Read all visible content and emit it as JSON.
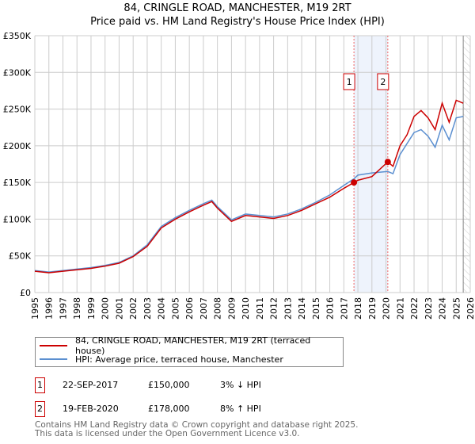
{
  "chart_data": {
    "type": "line",
    "title": "84, CRINGLE ROAD, MANCHESTER, M19 2RT",
    "subtitle": "Price paid vs. HM Land Registry's House Price Index (HPI)",
    "xlim": [
      1995,
      2026
    ],
    "ylim": [
      0,
      350000
    ],
    "yticks": [
      0,
      50000,
      100000,
      150000,
      200000,
      250000,
      300000,
      350000
    ],
    "yticklabels": [
      "£0",
      "£50K",
      "£100K",
      "£150K",
      "£200K",
      "£250K",
      "£300K",
      "£350K"
    ],
    "xticks": [
      1995,
      1996,
      1997,
      1998,
      1999,
      2000,
      2001,
      2002,
      2003,
      2004,
      2005,
      2006,
      2007,
      2008,
      2009,
      2010,
      2011,
      2012,
      2013,
      2014,
      2015,
      2016,
      2017,
      2018,
      2019,
      2020,
      2021,
      2022,
      2023,
      2024,
      2025,
      2026
    ],
    "grid": true,
    "series": [
      {
        "name": "84, CRINGLE ROAD, MANCHESTER, M19 2RT (terraced house)",
        "color": "#cc0000",
        "x": [
          1995,
          1996,
          1997,
          1998,
          1999,
          2000,
          2001,
          2002,
          2003,
          2004,
          2005,
          2006,
          2007,
          2007.6,
          2008,
          2009,
          2010,
          2011,
          2012,
          2013,
          2014,
          2015,
          2016,
          2017,
          2017.72,
          2018,
          2019,
          2020.13,
          2020.5,
          2021,
          2021.5,
          2022,
          2022.5,
          2023,
          2023.5,
          2024,
          2024.5,
          2025,
          2025.5
        ],
        "y": [
          29000,
          27000,
          29000,
          31000,
          33000,
          36000,
          40000,
          49000,
          63000,
          88000,
          100000,
          110000,
          119000,
          124000,
          115000,
          97000,
          105000,
          103000,
          101000,
          105000,
          112000,
          121000,
          130000,
          142000,
          150000,
          153000,
          158000,
          178000,
          172000,
          200000,
          215000,
          240000,
          248000,
          238000,
          222000,
          258000,
          232000,
          262000,
          258000
        ]
      },
      {
        "name": "HPI: Average price, terraced house, Manchester",
        "color": "#5b8fd0",
        "x": [
          1995,
          1996,
          1997,
          1998,
          1999,
          2000,
          2001,
          2002,
          2003,
          2004,
          2005,
          2006,
          2007,
          2007.6,
          2008,
          2009,
          2010,
          2011,
          2012,
          2013,
          2014,
          2015,
          2016,
          2017,
          2017.72,
          2018,
          2019,
          2020.13,
          2020.5,
          2021,
          2021.5,
          2022,
          2022.5,
          2023,
          2023.5,
          2024,
          2024.5,
          2025,
          2025.5
        ],
        "y": [
          30000,
          28000,
          30000,
          32000,
          34000,
          37000,
          41000,
          50000,
          65000,
          90000,
          102000,
          112000,
          121000,
          126000,
          117000,
          99000,
          107000,
          105000,
          103000,
          107000,
          114000,
          123000,
          133000,
          146000,
          155000,
          160000,
          163000,
          165000,
          162000,
          188000,
          203000,
          218000,
          222000,
          213000,
          198000,
          228000,
          208000,
          238000,
          240000
        ]
      }
    ],
    "sales": [
      {
        "label": "1",
        "x": 2017.72,
        "y": 150000,
        "date": "22-SEP-2017",
        "price": "£150,000",
        "hpi": "3% ↓ HPI"
      },
      {
        "label": "2",
        "x": 2020.13,
        "y": 178000,
        "date": "19-FEB-2020",
        "price": "£178,000",
        "hpi": "8% ↑ HPI"
      }
    ],
    "forecast_start": 2025.5
  },
  "footer": {
    "line1": "Contains HM Land Registry data © Crown copyright and database right 2025.",
    "line2": "This data is licensed under the Open Government Licence v3.0."
  }
}
